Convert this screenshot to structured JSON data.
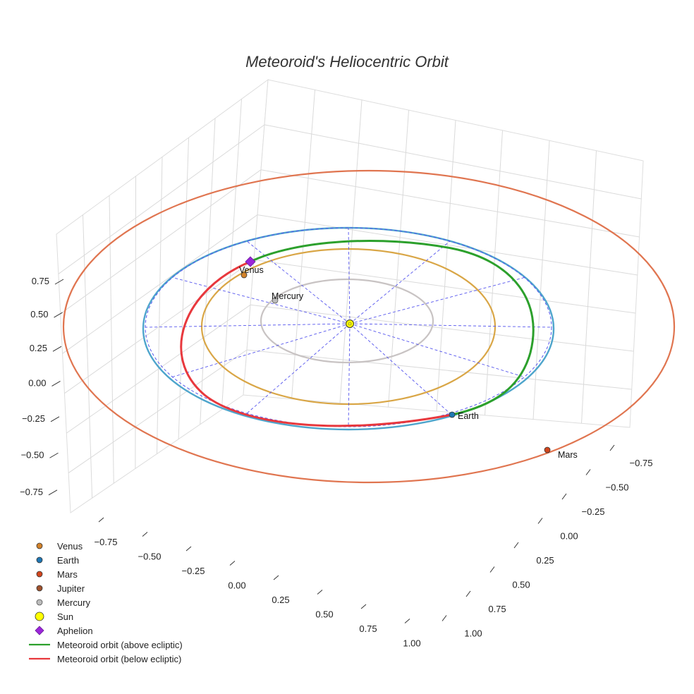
{
  "chart_data": {
    "type": "scatter3d",
    "title": "Meteoroid's Heliocentric Orbit",
    "axes": {
      "x_ticks": [
        "−0.75",
        "−0.50",
        "−0.25",
        "0.00",
        "0.25",
        "0.50",
        "0.75",
        "1.00"
      ],
      "y_ticks": [
        "−0.75",
        "−0.50",
        "−0.25",
        "0.00",
        "0.25",
        "0.50",
        "0.75",
        "1.00"
      ],
      "z_ticks": [
        "0.75",
        "0.50",
        "0.25",
        "0.00",
        "−0.25",
        "−0.50",
        "−0.75"
      ],
      "grid": true
    },
    "planets": [
      {
        "name": "Venus",
        "label": "Venus",
        "color": "#d2822a"
      },
      {
        "name": "Earth",
        "label": "Earth",
        "color": "#1f77b4"
      },
      {
        "name": "Mars",
        "label": "Mars",
        "color": "#d2461e"
      },
      {
        "name": "Mercury",
        "label": "Mercury",
        "color": "#bcbcbc"
      }
    ],
    "orbits": [
      {
        "name": "Mercury",
        "color": "#c8c3c3"
      },
      {
        "name": "Venus",
        "color": "#d9a646"
      },
      {
        "name": "Earth",
        "color": "#4ea5cc"
      },
      {
        "name": "Mars",
        "color": "#e07550"
      }
    ],
    "sun": {
      "name": "Sun",
      "color": "#ffff00"
    },
    "aphelion": {
      "name": "Aphelion",
      "color": "#9b26d9"
    },
    "meteoroid": {
      "above_color": "#2ca02c",
      "below_color": "#e8383d",
      "guide_color": "#5555ee"
    },
    "legend": {
      "position": "bottom-left",
      "entries": [
        {
          "label": "Venus",
          "symbol": "circle",
          "color": "#d2822a"
        },
        {
          "label": "Earth",
          "symbol": "circle",
          "color": "#1f77b4"
        },
        {
          "label": "Mars",
          "symbol": "circle",
          "color": "#d2461e"
        },
        {
          "label": "Jupiter",
          "symbol": "circle",
          "color": "#a0522d"
        },
        {
          "label": "Mercury",
          "symbol": "circle",
          "color": "#bcbcbc"
        },
        {
          "label": "Sun",
          "symbol": "big-circle",
          "color": "#ffff00"
        },
        {
          "label": "Aphelion",
          "symbol": "diamond",
          "color": "#9b26d9"
        },
        {
          "label": "Meteoroid orbit (above ecliptic)",
          "symbol": "line",
          "color": "#2ca02c"
        },
        {
          "label": "Meteoroid orbit (below ecliptic)",
          "symbol": "line",
          "color": "#e8383d"
        }
      ]
    }
  }
}
